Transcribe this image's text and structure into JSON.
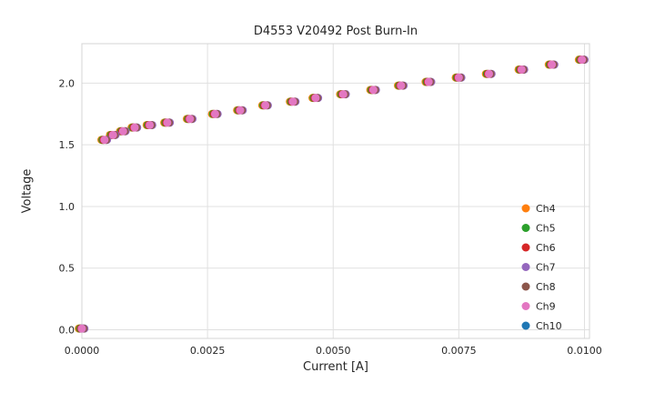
{
  "chart_data": {
    "type": "scatter",
    "title": "D4553 V20492 Post Burn-In",
    "xlabel": "Current [A]",
    "ylabel": "Voltage",
    "xlim": [
      0.0,
      0.0101
    ],
    "ylim": [
      -0.07,
      2.32
    ],
    "grid": true,
    "grid_color": "#e0e0e0",
    "box_color": "#d4d4d4",
    "background": "#ffffff",
    "tick_color": "#262626",
    "legend_position": "lower-right",
    "xticks": {
      "values": [
        0.0,
        0.0025,
        0.005,
        0.0075,
        0.01
      ],
      "labels": [
        "0.0000",
        "0.0025",
        "0.0050",
        "0.0075",
        "0.0100"
      ]
    },
    "yticks": {
      "values": [
        0.0,
        0.5,
        1.0,
        1.5,
        2.0
      ],
      "labels": [
        "0.0",
        "0.5",
        "1.0",
        "1.5",
        "2.0"
      ]
    },
    "x": [
      0.0,
      0.00045,
      0.00062,
      0.00082,
      0.00105,
      0.00135,
      0.0017,
      0.00215,
      0.00265,
      0.00315,
      0.00365,
      0.0042,
      0.00465,
      0.0052,
      0.0058,
      0.00635,
      0.0069,
      0.0075,
      0.0081,
      0.00875,
      0.00935,
      0.00995
    ],
    "y": [
      0.01,
      1.54,
      1.58,
      1.61,
      1.64,
      1.66,
      1.68,
      1.71,
      1.75,
      1.78,
      1.82,
      1.85,
      1.88,
      1.91,
      1.945,
      1.98,
      2.01,
      2.045,
      2.075,
      2.11,
      2.15,
      2.19
    ],
    "series": [
      {
        "name": "Ch4",
        "color": "#ff7f0e",
        "x_offset": -6e-05,
        "data": "shared",
        "z": 0
      },
      {
        "name": "Ch5",
        "color": "#2ca02c",
        "x_offset": -4e-05,
        "data": "shared",
        "z": 1
      },
      {
        "name": "Ch6",
        "color": "#d62728",
        "x_offset": -2e-05,
        "data": "shared",
        "z": 2
      },
      {
        "name": "Ch7",
        "color": "#9467bd",
        "x_offset": 5e-05,
        "data": "shared",
        "z": 3
      },
      {
        "name": "Ch8",
        "color": "#8c564b",
        "x_offset": 3e-05,
        "data": "shared",
        "z": 4
      },
      {
        "name": "Ch9",
        "color": "#e377c2",
        "x_offset": 0.0,
        "data": "shared",
        "z": 6
      },
      {
        "name": "Ch10",
        "color": "#1f77b4",
        "x_offset": 0.0,
        "data": "origin_only",
        "z": 5
      }
    ]
  }
}
